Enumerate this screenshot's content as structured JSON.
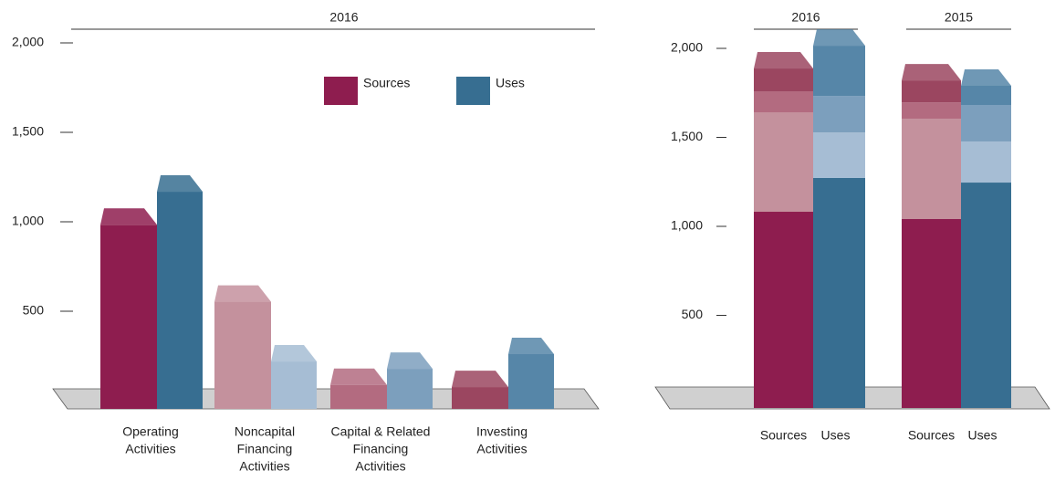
{
  "chart_data": [
    {
      "type": "bar3d",
      "title": "2016",
      "categories": [
        [
          "Operating",
          "Activities"
        ],
        [
          "Noncapital",
          "Financing",
          "Activities"
        ],
        [
          "Capital & Related",
          "Financing",
          "Activities"
        ],
        [
          "Investing",
          "Activities"
        ]
      ],
      "series": [
        {
          "name": "Sources",
          "color": "#8e1d4f",
          "colors": [
            "#8e1d4f",
            "#c4919d",
            "#b36b80",
            "#9b4660"
          ],
          "values": [
            1075,
            645,
            180,
            168
          ]
        },
        {
          "name": "Uses",
          "color": "#376e91",
          "colors": [
            "#376e91",
            "#a6bdd4",
            "#7c9fbd",
            "#5686a8"
          ],
          "values": [
            1260,
            311,
            270,
            352
          ]
        }
      ],
      "ylim": [
        0,
        2000
      ],
      "yticks": [
        500,
        {
          "value": 1000,
          "label": "1,000"
        },
        {
          "value": 1500,
          "label": "1,500"
        },
        {
          "value": 2000,
          "label": "2,000"
        }
      ]
    },
    {
      "type": "stacked3d",
      "groups": [
        "2016",
        "2015"
      ],
      "categories": [
        "Sources",
        "Uses",
        "Sources",
        "Uses"
      ],
      "series": [
        {
          "colors": [
            "#8e1d4f",
            "#376e91",
            "#8e1d4f",
            "#376e91"
          ],
          "values": [
            1082,
            1272,
            1041,
            1246
          ]
        },
        {
          "colors": [
            "#c4919d",
            "#a6bdd4",
            "#c4919d",
            "#a6bdd4"
          ],
          "values": [
            559,
            256,
            564,
            231
          ]
        },
        {
          "colors": [
            "#b36b80",
            "#7c9fbd",
            "#b36b80",
            "#7c9fbd"
          ],
          "values": [
            118,
            205,
            92,
            205
          ]
        },
        {
          "colors": [
            "#9b4660",
            "#5686a8",
            "#9b4660",
            "#5686a8"
          ],
          "values": [
            128,
            282,
            123,
            108
          ]
        }
      ],
      "ylim": [
        0,
        2000
      ],
      "yticks": [
        500,
        {
          "value": 1000,
          "label": "1,000"
        },
        {
          "value": 1500,
          "label": "1,500"
        },
        {
          "value": 2000,
          "label": "2,000"
        }
      ]
    }
  ]
}
